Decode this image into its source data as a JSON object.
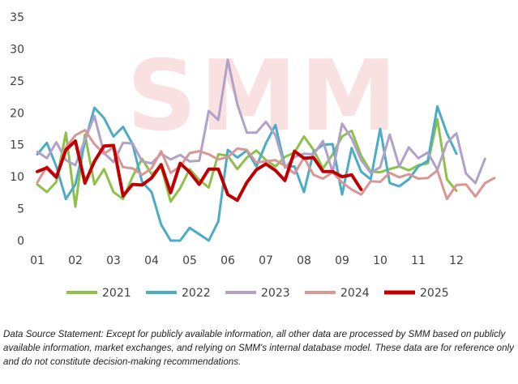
{
  "footnote": "Data Source Statement: Except for publicly available information, all other data are processed by SMM based on publicly available information, market exchanges, and relying on SMM's internal database model. These data are for reference only and do not constitute decision-making recommendations.",
  "watermark": "SMM",
  "chart_data": {
    "type": "line",
    "title": "",
    "xlabel": "",
    "ylabel": "",
    "ylim": [
      0,
      35
    ],
    "yticks": [
      0,
      5,
      10,
      15,
      20,
      25,
      30,
      35
    ],
    "xlim": [
      1,
      13
    ],
    "xticks": [
      "01",
      "02",
      "03",
      "04",
      "05",
      "06",
      "07",
      "08",
      "09",
      "10",
      "11",
      "12"
    ],
    "grid": false,
    "legend_position": "bottom",
    "series": [
      {
        "name": "2021",
        "color": "#8DC149",
        "x": [
          1,
          1.25,
          1.5,
          1.75,
          2,
          2.25,
          2.5,
          2.75,
          3,
          3.25,
          3.5,
          3.75,
          4,
          4.25,
          4.5,
          4.75,
          5,
          5.25,
          5.5,
          5.75,
          6,
          6.25,
          6.5,
          6.75,
          7,
          7.25,
          7.5,
          7.75,
          8,
          8.25,
          8.5,
          8.75,
          9,
          9.25,
          9.5,
          9.75,
          10,
          10.25,
          10.5,
          10.75,
          11,
          11.25,
          11.5,
          11.75,
          12
        ],
        "y": [
          8.8,
          7.6,
          9.2,
          16.9,
          5.3,
          16.6,
          8.8,
          11.2,
          7.6,
          6.5,
          10.0,
          12.8,
          10.4,
          11.6,
          6.1,
          8.2,
          11.2,
          9.5,
          8.3,
          13.5,
          13.3,
          11.2,
          13.0,
          14.1,
          12.6,
          11.6,
          13.1,
          13.8,
          16.3,
          14.2,
          11.3,
          13.5,
          16.3,
          17.2,
          13.3,
          10.8,
          10.7,
          11.2,
          11.6,
          11.0,
          11.8,
          12.1,
          19.0,
          9.6,
          7.8
        ]
      },
      {
        "name": "2022",
        "color": "#4BACC6",
        "x": [
          1,
          1.25,
          1.5,
          1.75,
          2,
          2.25,
          2.5,
          2.75,
          3,
          3.25,
          3.5,
          3.75,
          4,
          4.25,
          4.5,
          4.75,
          5,
          5.25,
          5.5,
          5.75,
          6,
          6.25,
          6.5,
          6.75,
          7,
          7.25,
          7.5,
          7.75,
          8,
          8.25,
          8.5,
          8.75,
          9,
          9.25,
          9.5,
          9.75,
          10,
          10.25,
          10.5,
          10.75,
          11,
          11.25,
          11.5,
          11.75,
          12
        ],
        "y": [
          13.5,
          15.3,
          11.6,
          6.5,
          8.8,
          15.5,
          20.8,
          19.2,
          16.3,
          17.8,
          15.1,
          9.2,
          7.6,
          2.5,
          0.0,
          0.0,
          2.0,
          1.0,
          0.0,
          3.0,
          14.2,
          13.0,
          14.1,
          11.6,
          15.2,
          18.1,
          11.6,
          11.6,
          7.6,
          13.9,
          15.0,
          15.1,
          7.2,
          14.5,
          10.8,
          9.6,
          17.5,
          9.0,
          8.5,
          9.6,
          11.6,
          12.5,
          21.0,
          16.8,
          13.6
        ]
      },
      {
        "name": "2023",
        "color": "#B1A0C7",
        "x": [
          1,
          1.25,
          1.5,
          1.75,
          2,
          2.25,
          2.5,
          2.75,
          3,
          3.25,
          3.5,
          3.75,
          4,
          4.25,
          4.5,
          4.75,
          5,
          5.25,
          5.5,
          5.75,
          6,
          6.25,
          6.5,
          6.75,
          7,
          7.25,
          7.5,
          7.75,
          8,
          8.25,
          8.5,
          8.75,
          9,
          9.25,
          9.5,
          9.75,
          10,
          10.25,
          10.5,
          10.75,
          11,
          11.25,
          11.5,
          11.75,
          12,
          12.25,
          12.5,
          12.75
        ],
        "y": [
          13.9,
          12.9,
          15.4,
          12.6,
          11.8,
          15.8,
          19.5,
          13.7,
          12.3,
          15.3,
          15.2,
          12.4,
          12.1,
          13.6,
          12.7,
          13.4,
          12.4,
          12.5,
          20.3,
          18.9,
          28.3,
          21.3,
          16.9,
          16.9,
          18.6,
          16.5,
          11.4,
          13.1,
          13.6,
          13.5,
          15.6,
          10.7,
          18.3,
          16.0,
          12.6,
          10.6,
          11.5,
          16.6,
          11.6,
          14.6,
          12.9,
          13.8,
          11.1,
          15.3,
          16.8,
          10.5,
          9.0,
          12.8
        ]
      },
      {
        "name": "2024",
        "color": "#DA9694",
        "x": [
          1,
          1.25,
          1.5,
          1.75,
          2,
          2.25,
          2.5,
          2.75,
          3,
          3.25,
          3.5,
          3.75,
          4,
          4.25,
          4.5,
          4.75,
          5,
          5.25,
          5.5,
          5.75,
          6,
          6.25,
          6.5,
          6.75,
          7,
          7.25,
          7.5,
          7.75,
          8,
          8.25,
          8.5,
          8.75,
          9,
          9.25,
          9.5,
          9.75,
          10,
          10.25,
          10.5,
          10.75,
          11,
          11.25,
          11.5,
          11.75,
          12,
          12.25,
          12.5,
          12.75,
          13
        ],
        "y": [
          9.1,
          11.6,
          10.1,
          14.6,
          16.5,
          17.3,
          15.1,
          13.6,
          14.6,
          11.5,
          11.3,
          10.3,
          11.3,
          14.0,
          10.6,
          11.6,
          13.7,
          14.0,
          13.5,
          12.7,
          13.1,
          14.4,
          14.2,
          12.2,
          12.4,
          12.6,
          11.7,
          10.5,
          13.0,
          10.3,
          9.7,
          10.7,
          9.1,
          8.0,
          7.2,
          9.3,
          9.2,
          10.6,
          9.9,
          10.4,
          9.7,
          9.8,
          11.0,
          6.5,
          8.7,
          8.8,
          6.9,
          9.0,
          9.8
        ]
      },
      {
        "name": "2025",
        "color": "#C00000",
        "x": [
          1,
          1.25,
          1.5,
          1.75,
          2,
          2.25,
          2.5,
          2.75,
          3,
          3.25,
          3.5,
          3.75,
          4,
          4.25,
          4.5,
          4.75,
          5,
          5.25,
          5.5,
          5.75,
          6,
          6.25,
          6.5,
          6.75,
          7,
          7.25,
          7.5,
          7.75,
          8,
          8.25,
          8.5,
          8.75,
          9,
          9.25,
          9.5
        ],
        "y": [
          10.8,
          11.4,
          9.9,
          14.2,
          15.6,
          9.0,
          12.4,
          14.8,
          14.9,
          7.0,
          8.8,
          8.7,
          9.8,
          11.9,
          7.5,
          12.1,
          10.7,
          8.8,
          11.2,
          11.2,
          7.2,
          6.3,
          9.1,
          11.1,
          12.0,
          11.0,
          9.4,
          14.0,
          12.9,
          13.0,
          10.8,
          10.8,
          10.0,
          10.3,
          8.0
        ]
      }
    ]
  }
}
